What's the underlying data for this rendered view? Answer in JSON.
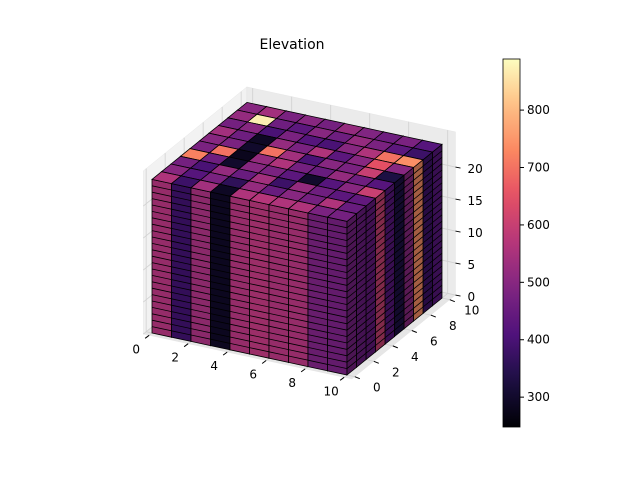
{
  "chart_data": {
    "type": "voxel-3d",
    "title": "Elevation",
    "x_ticks": [
      0,
      2,
      4,
      6,
      8,
      10
    ],
    "y_ticks": [
      0,
      2,
      4,
      6,
      8,
      10
    ],
    "z_ticks": [
      0,
      5,
      10,
      15,
      20
    ],
    "xlim": [
      0,
      10
    ],
    "ylim": [
      0,
      10
    ],
    "zlim": [
      0,
      24
    ],
    "z_levels": 24,
    "colormap": "magma",
    "colorbar": {
      "ticks": [
        300,
        400,
        500,
        600,
        700,
        800
      ],
      "range": [
        248,
        889
      ]
    },
    "grid": true,
    "elevation_grid_rows_y0_to_y9": [
      [
        560,
        380,
        540,
        290,
        560,
        570,
        560,
        560,
        480,
        470
      ],
      [
        500,
        420,
        480,
        360,
        520,
        450,
        500,
        470,
        560,
        450
      ],
      [
        470,
        400,
        520,
        450,
        540,
        380,
        520,
        460,
        430,
        440
      ],
      [
        720,
        460,
        300,
        500,
        480,
        430,
        300,
        420,
        500,
        600
      ],
      [
        480,
        700,
        280,
        520,
        560,
        470,
        450,
        520,
        460,
        420
      ],
      [
        500,
        480,
        300,
        700,
        540,
        400,
        500,
        480,
        600,
        330
      ],
      [
        540,
        460,
        290,
        520,
        480,
        560,
        430,
        500,
        650,
        500
      ],
      [
        470,
        500,
        400,
        480,
        420,
        400,
        500,
        560,
        700,
        740
      ],
      [
        520,
        870,
        460,
        430,
        500,
        460,
        520,
        480,
        430,
        380
      ],
      [
        500,
        540,
        480,
        500,
        470,
        520,
        490,
        460,
        480,
        420
      ]
    ]
  }
}
